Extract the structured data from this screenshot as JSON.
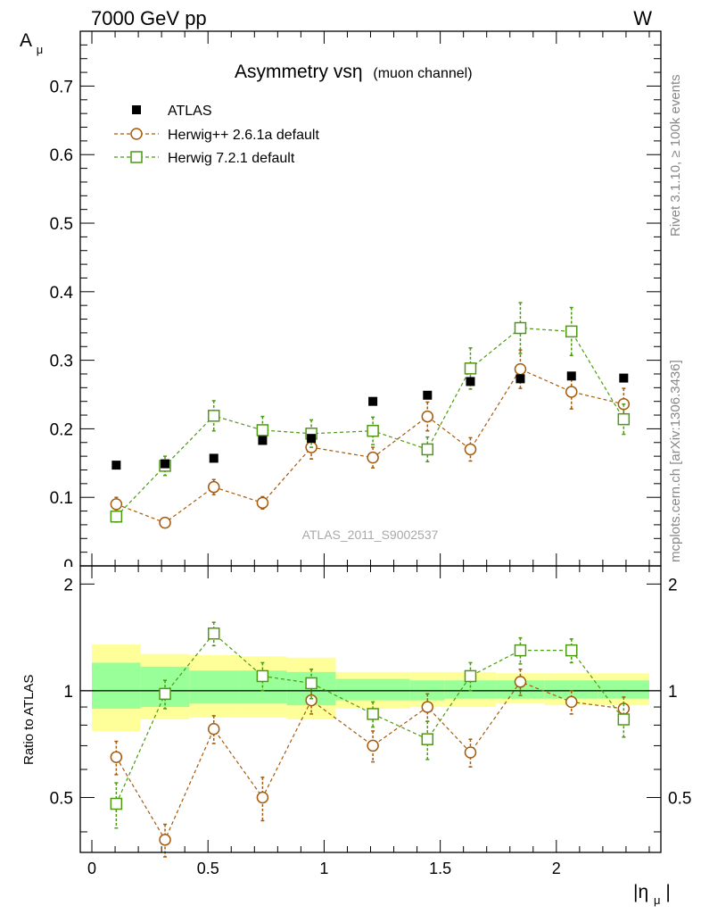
{
  "header": {
    "left": "7000 GeV pp",
    "right": "W"
  },
  "side_labels": {
    "rivet": "Rivet 3.1.10, ≥ 100k events",
    "mcplots": "mcplots.cern.ch [arXiv:1306.3436]"
  },
  "analysis_id": "ATLAS_2011_S9002537",
  "chart_data": [
    {
      "type": "scatter",
      "title_main": "Asymmetry vsη",
      "title_sub": "(muon channel)",
      "ylabel": "A",
      "ylabel_sub": "μ",
      "xlim": [
        -0.05,
        2.45
      ],
      "ylim": [
        0,
        0.78
      ],
      "yticks": [
        0.1,
        0.2,
        0.3,
        0.4,
        0.5,
        0.6,
        0.7
      ],
      "ytick_labels": [
        "0.1",
        "0.2",
        "0.3",
        "0.4",
        "0.5",
        "0.6",
        "0.7"
      ],
      "y_zero_label": "0",
      "legend_position": "top-left",
      "x_edges": [
        0,
        0.21,
        0.42,
        0.63,
        0.84,
        1.05,
        1.37,
        1.52,
        1.74,
        1.95,
        2.18,
        2.4
      ],
      "x": [
        0.105,
        0.315,
        0.525,
        0.735,
        0.945,
        1.21,
        1.445,
        1.63,
        1.845,
        2.065,
        2.29
      ],
      "series": [
        {
          "name": "ATLAS",
          "marker": "square-filled",
          "color": "#000000",
          "values": [
            0.147,
            0.149,
            0.157,
            0.183,
            0.186,
            0.24,
            0.249,
            0.269,
            0.273,
            0.277,
            0.274
          ]
        },
        {
          "name": "Herwig++ 2.6.1a default",
          "marker": "circle-open",
          "color": "#a65a0c",
          "values": [
            0.09,
            0.063,
            0.115,
            0.092,
            0.173,
            0.158,
            0.218,
            0.17,
            0.287,
            0.254,
            0.236
          ],
          "errors": [
            0.01,
            0.006,
            0.011,
            0.009,
            0.017,
            0.015,
            0.021,
            0.017,
            0.028,
            0.025,
            0.023
          ]
        },
        {
          "name": "Herwig 7.2.1 default",
          "marker": "square-open",
          "color": "#4c9a0e",
          "values": [
            0.072,
            0.146,
            0.219,
            0.198,
            0.193,
            0.197,
            0.17,
            0.288,
            0.347,
            0.342,
            0.214
          ],
          "errors": [
            0.008,
            0.014,
            0.022,
            0.02,
            0.02,
            0.02,
            0.018,
            0.03,
            0.037,
            0.035,
            0.022
          ]
        }
      ]
    },
    {
      "type": "scatter",
      "ylabel": "Ratio to ATLAS",
      "xlabel": "|η",
      "xlabel_sub": "μ",
      "xlabel_close": "|",
      "xlim": [
        -0.05,
        2.45
      ],
      "ylim": [
        0.35,
        2.25
      ],
      "xticks": [
        0,
        0.5,
        1,
        1.5,
        2
      ],
      "xtick_labels": [
        "0",
        "0.5",
        "1",
        "1.5",
        "2"
      ],
      "yticks": [
        0.5,
        1,
        2
      ],
      "ytick_labels": [
        "0.5",
        "1",
        "2"
      ],
      "band_outer_high": [
        1.35,
        1.27,
        1.26,
        1.25,
        1.24,
        1.13,
        1.13,
        1.13,
        1.12,
        1.12,
        1.12
      ],
      "band_outer_low": [
        0.77,
        0.83,
        0.84,
        0.84,
        0.83,
        0.89,
        0.9,
        0.9,
        0.92,
        0.91,
        0.91
      ],
      "band_inner_high": [
        1.2,
        1.17,
        1.14,
        1.14,
        1.13,
        1.08,
        1.07,
        1.07,
        1.07,
        1.07,
        1.07
      ],
      "band_inner_low": [
        0.89,
        0.9,
        0.92,
        0.92,
        0.91,
        0.94,
        0.94,
        0.95,
        0.95,
        0.95,
        0.95
      ],
      "series": [
        {
          "name": "Herwig++ 2.6.1a default",
          "color": "#a65a0c",
          "marker": "circle-open",
          "values": [
            0.65,
            0.38,
            0.78,
            0.5,
            0.94,
            0.7,
            0.9,
            0.67,
            1.06,
            0.93,
            0.89
          ],
          "errors": [
            0.07,
            0.04,
            0.07,
            0.07,
            0.08,
            0.07,
            0.08,
            0.06,
            0.09,
            0.07,
            0.07
          ]
        },
        {
          "name": "Herwig 7.2.1 default",
          "color": "#4c9a0e",
          "marker": "square-open",
          "values": [
            0.48,
            0.98,
            1.45,
            1.1,
            1.05,
            0.86,
            0.73,
            1.1,
            1.3,
            1.3,
            0.83
          ],
          "errors": [
            0.07,
            0.09,
            0.11,
            0.1,
            0.1,
            0.07,
            0.09,
            0.1,
            0.11,
            0.1,
            0.09
          ]
        }
      ]
    }
  ]
}
